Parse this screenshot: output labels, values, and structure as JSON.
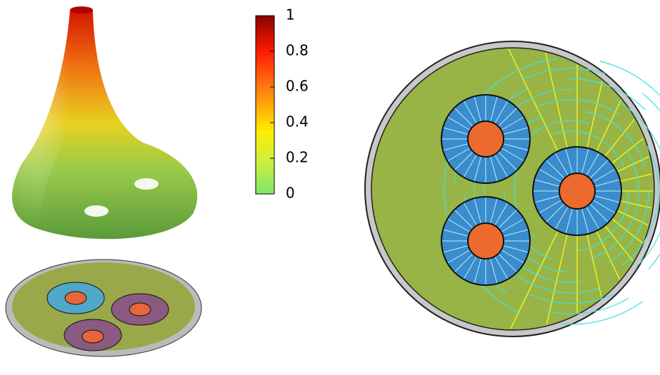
{
  "colorbar": {
    "lim": [
      0,
      1
    ],
    "ticks": [
      0,
      0.2,
      0.4,
      0.6,
      0.8,
      1
    ]
  }
}
